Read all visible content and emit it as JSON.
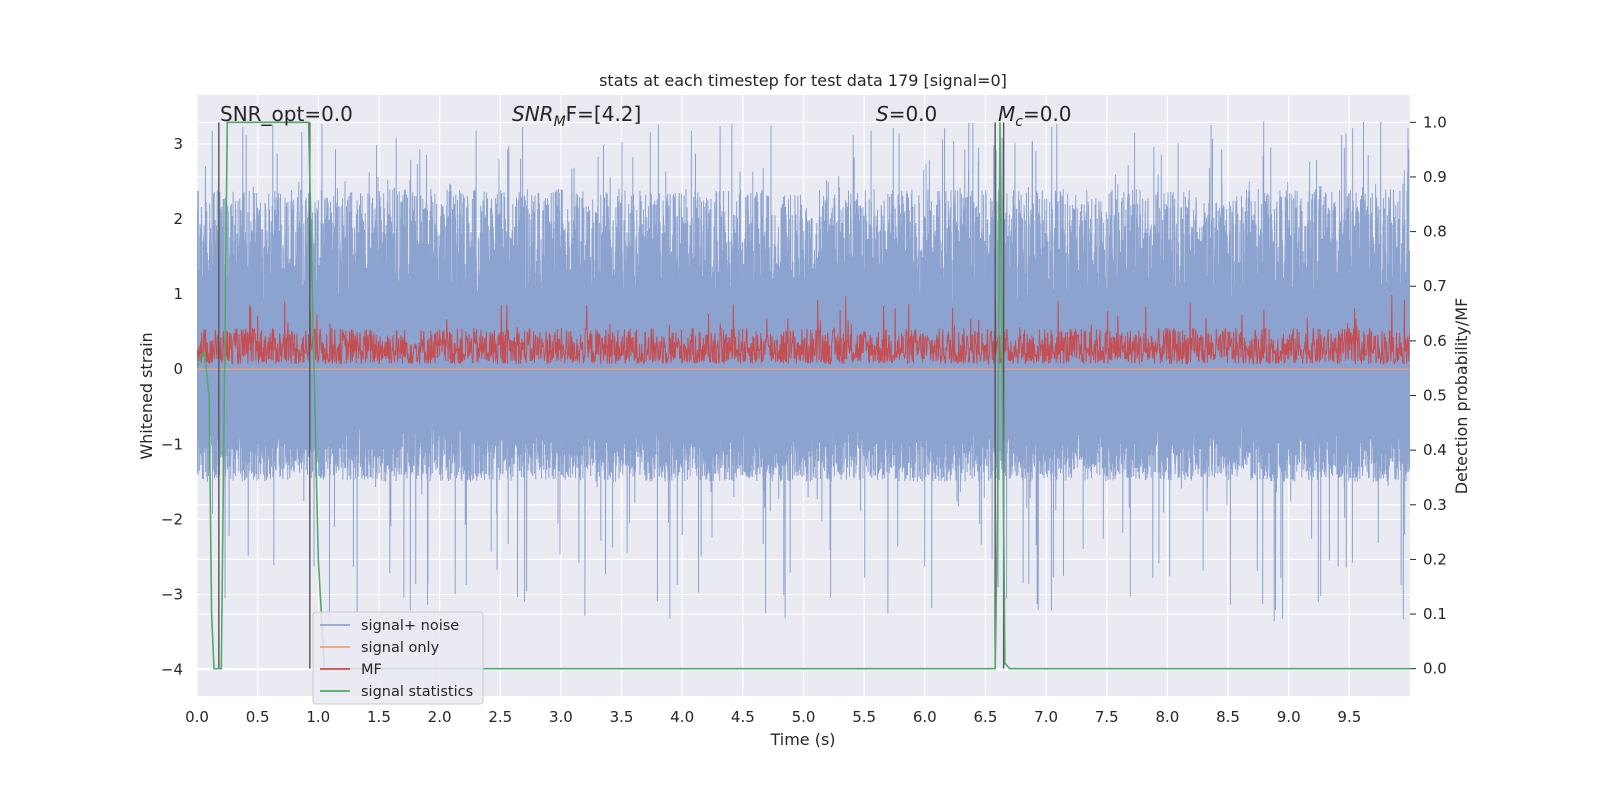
{
  "chart_data": {
    "type": "line",
    "title": "stats at each timestep for test data 179 [signal=0]",
    "xlabel": "Time (s)",
    "ylabel": "Whitened strain",
    "y2label": "Detection probability/MF",
    "xlim": [
      0.0,
      10.0
    ],
    "ylim": [
      -4.35,
      3.65
    ],
    "y2lim": [
      -0.05,
      1.05
    ],
    "x_ticks": [
      "0.0",
      "0.5",
      "1.0",
      "1.5",
      "2.0",
      "2.5",
      "3.0",
      "3.5",
      "4.0",
      "4.5",
      "5.0",
      "5.5",
      "6.0",
      "6.5",
      "7.0",
      "7.5",
      "8.0",
      "8.5",
      "9.0",
      "9.5"
    ],
    "y_ticks": [
      "3",
      "2",
      "1",
      "0",
      "−1",
      "−2",
      "−3",
      "−4"
    ],
    "y2_ticks": [
      "1.0",
      "0.9",
      "0.8",
      "0.7",
      "0.6",
      "0.5",
      "0.4",
      "0.3",
      "0.2",
      "0.1",
      "0.0"
    ],
    "grid": true,
    "legend_position": "lower-left",
    "annotations": {
      "snr_opt": "SNR_opt=0.0",
      "snr_mf_base": "SNR",
      "snr_mf_sub": "M",
      "snr_mf_tail": "F=[4.2]",
      "s_base": "S",
      "s_tail": "=0.0",
      "mc_base": "M",
      "mc_sub": "c",
      "mc_tail": "=0.0"
    },
    "vertical_markers_s": [
      0.18,
      0.93,
      6.58,
      6.65
    ],
    "series": [
      {
        "name": "signal+ noise",
        "axis": "left",
        "color": "#8da3cf",
        "description_values": {
          "band_low": -1.5,
          "band_high": 2.4,
          "peak_high": 3.3,
          "peak_low": -4.0
        }
      },
      {
        "name": "signal only",
        "axis": "left",
        "color": "#e8a07f",
        "x": [
          0.0,
          10.0
        ],
        "y": [
          0.0,
          0.0
        ]
      },
      {
        "name": "MF",
        "axis": "left",
        "color": "#c44e52",
        "description_values": {
          "baseline": 0.07,
          "typical_high": 0.55,
          "peak_high": 1.0
        }
      },
      {
        "name": "signal statistics",
        "axis": "right",
        "color": "#55a868",
        "x": [
          0.0,
          0.02,
          0.06,
          0.1,
          0.12,
          0.14,
          0.2,
          0.25,
          0.3,
          0.92,
          0.95,
          1.0,
          1.05,
          6.58,
          6.6,
          6.62,
          6.66,
          6.7,
          10.0
        ],
        "y": [
          0.55,
          0.57,
          0.58,
          0.5,
          0.1,
          0.0,
          0.0,
          1.0,
          1.0,
          1.0,
          0.7,
          0.2,
          0.0,
          0.0,
          0.3,
          1.0,
          0.01,
          0.0,
          0.0
        ]
      }
    ]
  }
}
